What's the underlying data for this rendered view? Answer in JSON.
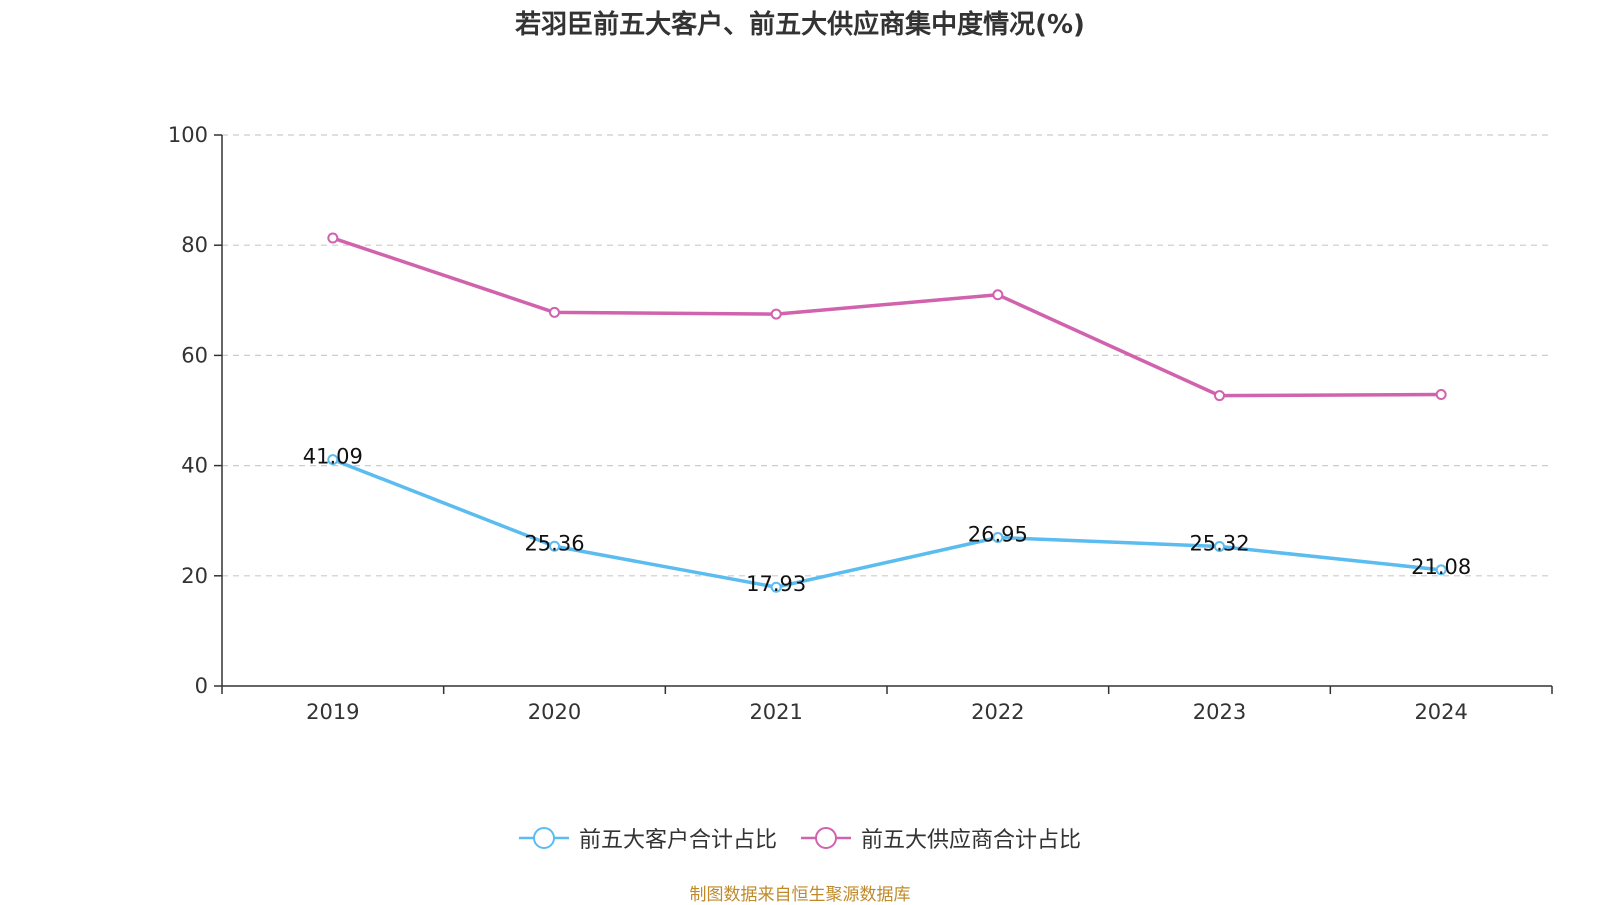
{
  "title": "若羽臣前五大客户、前五大供应商集中度情况(%)",
  "source": "制图数据来自恒生聚源数据库",
  "chart_data": {
    "type": "line",
    "title": "若羽臣前五大客户、前五大供应商集中度情况(%)",
    "xlabel": "",
    "ylabel": "",
    "categories": [
      "2019",
      "2020",
      "2021",
      "2022",
      "2023",
      "2024"
    ],
    "ylim": [
      0,
      100
    ],
    "yticks": [
      0,
      20,
      40,
      60,
      80,
      100
    ],
    "grid": true,
    "legend_position": "bottom-center",
    "series": [
      {
        "name": "前五大客户合计占比",
        "color": "#5bbcf0",
        "values": [
          41.09,
          25.36,
          17.93,
          26.95,
          25.32,
          21.08
        ],
        "labels": [
          "41.09",
          "25.36",
          "17.93",
          "26.95",
          "25.32",
          "21.08"
        ]
      },
      {
        "name": "前五大供应商合计占比",
        "color": "#d162ad",
        "values": [
          81.3,
          67.8,
          67.5,
          71.0,
          52.7,
          52.9
        ],
        "labels": []
      }
    ]
  }
}
